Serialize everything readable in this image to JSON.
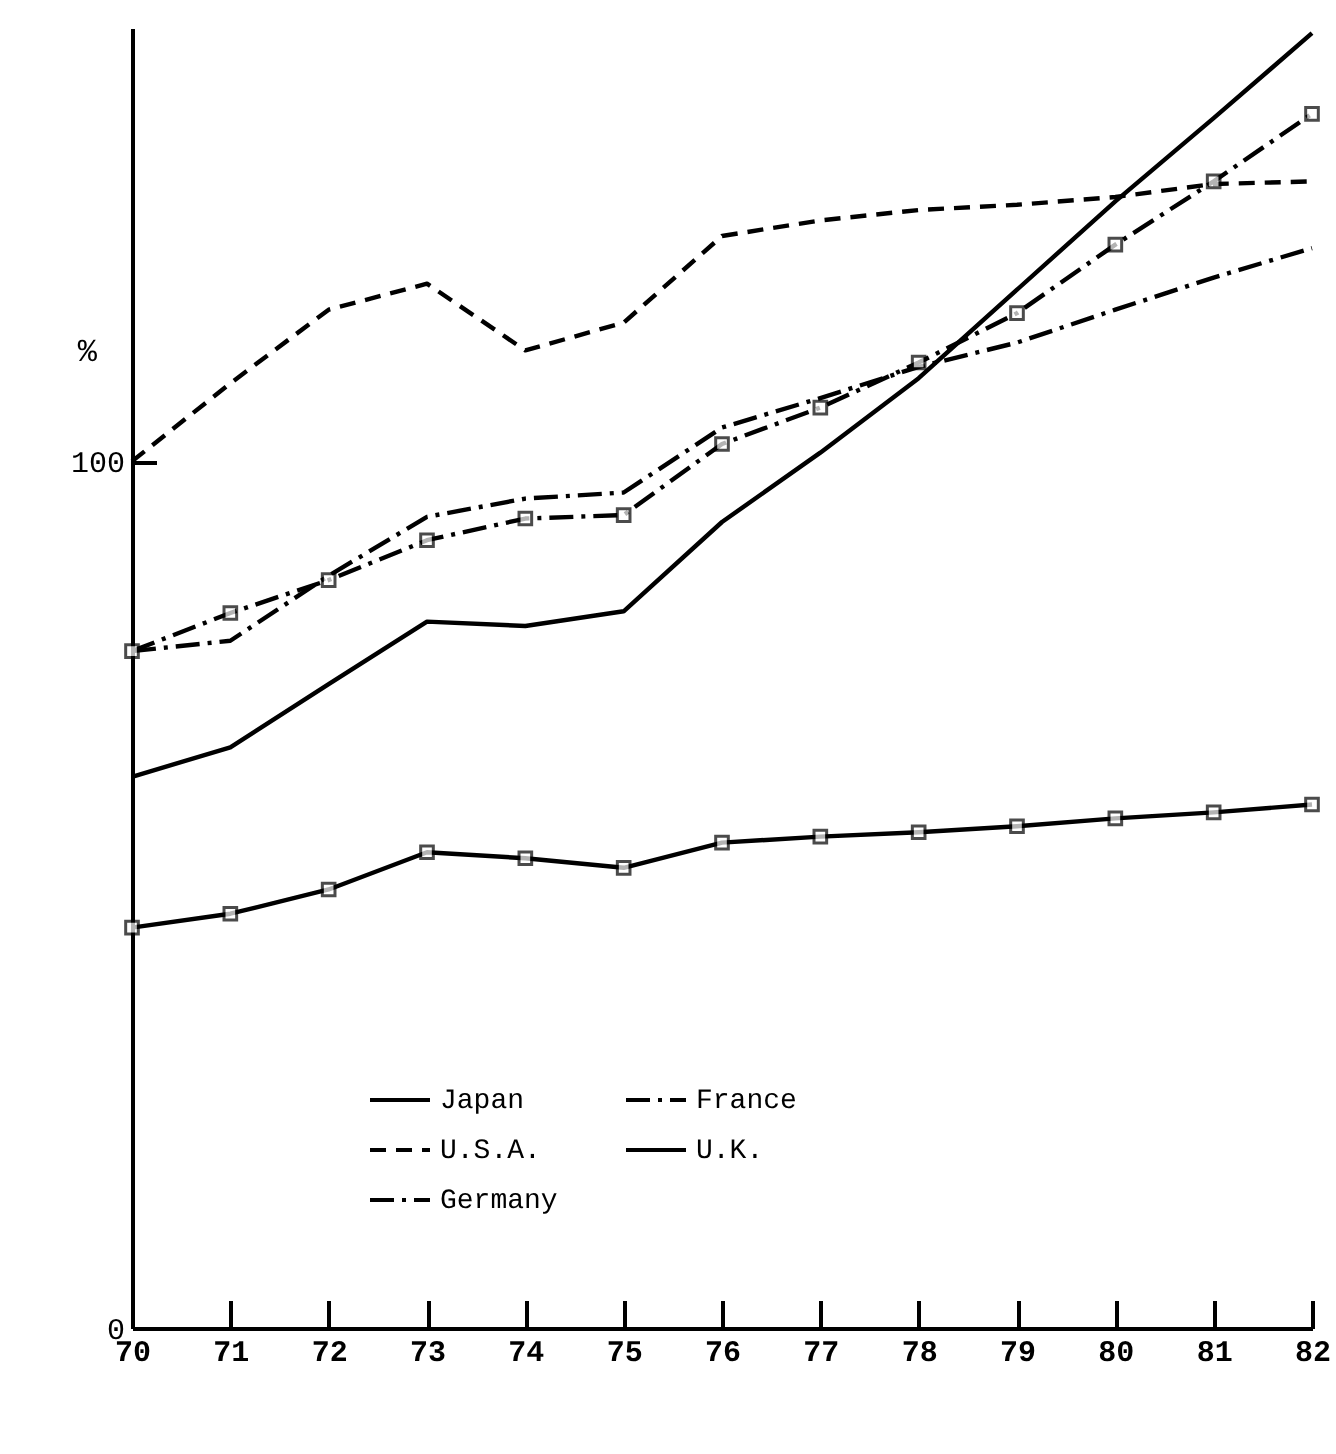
{
  "chart_data": {
    "type": "line",
    "ylabel": "%",
    "x": [
      70,
      71,
      72,
      73,
      74,
      75,
      76,
      77,
      78,
      79,
      80,
      81,
      82
    ],
    "xlim": [
      70,
      82
    ],
    "xticks": [
      70,
      71,
      72,
      73,
      74,
      75,
      76,
      77,
      78,
      79,
      80,
      81,
      82
    ],
    "ylim": [
      0,
      150
    ],
    "yticks": [
      0,
      100
    ],
    "grid": false,
    "legend": "bottom",
    "series": [
      {
        "name": "Japan",
        "color": "#000000",
        "line_style": "solid",
        "marker": "none",
        "values": [
          63.6,
          67,
          74.3,
          81.5,
          81,
          82.7,
          93,
          101,
          109.6,
          119.8,
          130,
          139.6,
          149.4
        ]
      },
      {
        "name": "U.S.A.",
        "color": "#000000",
        "line_style": "dashed",
        "marker": "none",
        "values": [
          100,
          109,
          117.5,
          120.5,
          112.8,
          116,
          126,
          127.8,
          129,
          129.6,
          130.5,
          132,
          132.3
        ]
      },
      {
        "name": "Germany",
        "color": "#000000",
        "line_style": "dashdot",
        "marker": "none",
        "values": [
          78.1,
          79.3,
          86.8,
          93.6,
          95.7,
          96.4,
          103.9,
          107.3,
          110.9,
          113.7,
          117.5,
          121.2,
          124.6
        ]
      },
      {
        "name": "France",
        "color": "#000000",
        "line_style": "dashdot",
        "marker": "square",
        "values": [
          78.1,
          82.5,
          86.3,
          90.9,
          93.4,
          93.8,
          102,
          106.2,
          111.4,
          117.1,
          125,
          132.3,
          140.1
        ]
      },
      {
        "name": "U.K.",
        "color": "#000000",
        "line_style": "solid",
        "marker": "square",
        "values": [
          46.2,
          47.8,
          50.6,
          54.9,
          54.2,
          53.1,
          56,
          56.7,
          57.2,
          57.9,
          58.8,
          59.5,
          60.4
        ]
      }
    ]
  }
}
